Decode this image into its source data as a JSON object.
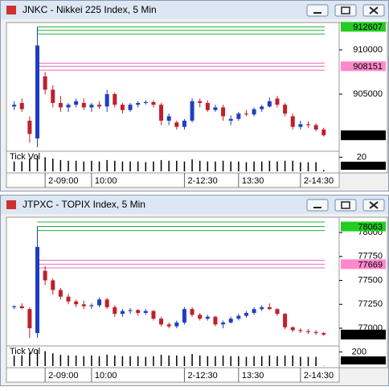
{
  "chart_data": [
    {
      "type": "candlestick",
      "title": "JNKC - Nikkei 225 Index, 5 Min",
      "volume_label": "Tick Vol",
      "up_color": "#1f3fbf",
      "down_color": "#c0202a",
      "xlim": [
        -1,
        42
      ],
      "xticks": [
        {
          "value": 4,
          "label": "2-09:00"
        },
        {
          "value": 10,
          "label": "10:00"
        },
        {
          "value": 22,
          "label": "2-12:30"
        },
        {
          "value": 29,
          "label": "13:30"
        },
        {
          "value": 37,
          "label": "2-14:30"
        }
      ],
      "ylim": [
        898545,
        913091
      ],
      "yticks": [
        910000,
        905000
      ],
      "levels": [
        {
          "value": 912607,
          "color": "#20b040"
        },
        {
          "value": 912200,
          "color": "#20b040"
        },
        {
          "value": 911800,
          "color": "#20b040"
        },
        {
          "value": 908500,
          "color": "#e070c0"
        },
        {
          "value": 908151,
          "color": "#e070c0"
        },
        {
          "value": 907700,
          "color": "#e070c0"
        }
      ],
      "markers": [
        {
          "value": 912607,
          "color": "#22cc22"
        },
        {
          "value": 908151,
          "color": "#ff88cc"
        },
        {
          "value": 900348,
          "color": "#000000"
        }
      ],
      "open": [
        903600,
        904000,
        902000,
        900000,
        907000,
        905500,
        904000,
        903500,
        903800,
        904000,
        903500,
        903800,
        903600,
        905000,
        903800,
        903200,
        903800,
        904000,
        904100,
        903800,
        902000,
        901800,
        901300,
        902000,
        904200,
        904000,
        903200,
        903500,
        902000,
        902200,
        902800,
        902700,
        903300,
        903600,
        904500,
        903800,
        902500,
        901300,
        901600,
        901500,
        901000
      ],
      "high": [
        904200,
        904500,
        902500,
        912607,
        907500,
        906000,
        904800,
        904000,
        904500,
        904500,
        904000,
        904200,
        905500,
        905200,
        904000,
        904000,
        904200,
        904300,
        904300,
        904000,
        902800,
        902000,
        902200,
        904500,
        904500,
        904300,
        903800,
        903800,
        902600,
        903000,
        903200,
        903500,
        903800,
        904600,
        904800,
        904000,
        902800,
        902000,
        901900,
        901700,
        901200
      ],
      "low": [
        903200,
        903000,
        899500,
        899000,
        905000,
        903500,
        903000,
        903000,
        903500,
        903200,
        903000,
        903300,
        903000,
        903500,
        902800,
        903000,
        903500,
        903800,
        903500,
        901500,
        901500,
        901000,
        901000,
        901800,
        903500,
        903000,
        903000,
        902000,
        901500,
        902000,
        902500,
        902500,
        903000,
        903500,
        903500,
        902500,
        901000,
        901000,
        901200,
        900800,
        900200
      ],
      "close": [
        903800,
        903300,
        900500,
        910500,
        905500,
        904000,
        903500,
        903800,
        904200,
        903500,
        903800,
        903600,
        905000,
        903800,
        903200,
        903800,
        904000,
        904100,
        903800,
        902000,
        902500,
        901300,
        902000,
        904200,
        904000,
        903200,
        903500,
        902500,
        902200,
        902800,
        902700,
        903300,
        903600,
        904200,
        903800,
        902800,
        901300,
        901600,
        901500,
        901000,
        900348
      ],
      "volume_ylim": [
        0,
        25
      ],
      "volume_yticks": [
        20
      ],
      "volume_marker": 2,
      "volume": [
        14,
        14,
        18,
        22,
        20,
        18,
        16,
        15,
        15,
        14,
        15,
        14,
        16,
        15,
        14,
        14,
        14,
        13,
        14,
        16,
        15,
        15,
        14,
        17,
        15,
        14,
        14,
        15,
        14,
        14,
        13,
        14,
        14,
        15,
        14,
        15,
        15,
        13,
        13,
        13,
        2
      ]
    },
    {
      "type": "candlestick",
      "title": "JTPXC - TOPIX Index, 5 Min",
      "volume_label": "Tick Vol",
      "up_color": "#1f3fbf",
      "down_color": "#c0202a",
      "xlim": [
        -1,
        42
      ],
      "xticks": [
        {
          "value": 4,
          "label": "2-09:00"
        },
        {
          "value": 10,
          "label": "10:00"
        },
        {
          "value": 22,
          "label": "2-12:30"
        },
        {
          "value": 29,
          "label": "13:30"
        },
        {
          "value": 37,
          "label": "2-14:30"
        }
      ],
      "ylim": [
        76815,
        78160
      ],
      "yticks": [
        78000,
        77750,
        77500,
        77250,
        77000
      ],
      "levels": [
        {
          "value": 78110,
          "color": "#20b040"
        },
        {
          "value": 78063,
          "color": "#20b040"
        },
        {
          "value": 78020,
          "color": "#20b040"
        },
        {
          "value": 77710,
          "color": "#e070c0"
        },
        {
          "value": 77669,
          "color": "#e070c0"
        },
        {
          "value": 77630,
          "color": "#e070c0"
        }
      ],
      "markers": [
        {
          "value": 78063,
          "color": "#22cc22"
        },
        {
          "value": 77669,
          "color": "#ff88cc"
        },
        {
          "value": 76934,
          "color": "#000000"
        }
      ],
      "open": [
        77220,
        77230,
        77200,
        76950,
        77600,
        77500,
        77400,
        77330,
        77280,
        77250,
        77230,
        77240,
        77300,
        77220,
        77150,
        77180,
        77190,
        77160,
        77180,
        77100,
        77040,
        77020,
        77060,
        77200,
        77140,
        77100,
        77120,
        77040,
        77060,
        77100,
        77130,
        77160,
        77200,
        77220,
        77200,
        77150,
        77010,
        76980,
        76970,
        76960,
        76950
      ],
      "high": [
        77240,
        77260,
        77220,
        78063,
        77650,
        77520,
        77420,
        77360,
        77300,
        77290,
        77260,
        77320,
        77320,
        77240,
        77200,
        77210,
        77200,
        77200,
        77190,
        77120,
        77060,
        77080,
        77220,
        77220,
        77160,
        77140,
        77130,
        77080,
        77120,
        77150,
        77180,
        77220,
        77240,
        77260,
        77210,
        77160,
        77020,
        77000,
        76990,
        76980,
        76960
      ],
      "low": [
        77200,
        77200,
        76900,
        76900,
        77450,
        77350,
        77300,
        77250,
        77220,
        77200,
        77200,
        77220,
        77200,
        77120,
        77120,
        77150,
        77130,
        77140,
        77080,
        77020,
        77000,
        77000,
        77040,
        77120,
        77080,
        77080,
        77020,
        77000,
        77050,
        77080,
        77110,
        77140,
        77180,
        77190,
        77130,
        76990,
        76960,
        76950,
        76940,
        76930,
        76920
      ],
      "close": [
        77230,
        77210,
        77000,
        77850,
        77500,
        77400,
        77330,
        77280,
        77250,
        77230,
        77240,
        77300,
        77220,
        77150,
        77180,
        77190,
        77160,
        77180,
        77100,
        77040,
        77020,
        77060,
        77200,
        77140,
        77100,
        77120,
        77040,
        77060,
        77100,
        77130,
        77160,
        77200,
        77220,
        77200,
        77150,
        77010,
        76980,
        76970,
        76960,
        76950,
        76934
      ],
      "volume_ylim": [
        0,
        250
      ],
      "volume_yticks": [
        200
      ],
      "volume_marker": 3,
      "volume": [
        150,
        150,
        190,
        230,
        210,
        180,
        160,
        150,
        150,
        140,
        150,
        140,
        160,
        150,
        140,
        140,
        140,
        130,
        140,
        160,
        150,
        150,
        140,
        170,
        150,
        140,
        140,
        150,
        140,
        140,
        130,
        140,
        140,
        150,
        140,
        150,
        150,
        130,
        130,
        130,
        3
      ]
    }
  ]
}
